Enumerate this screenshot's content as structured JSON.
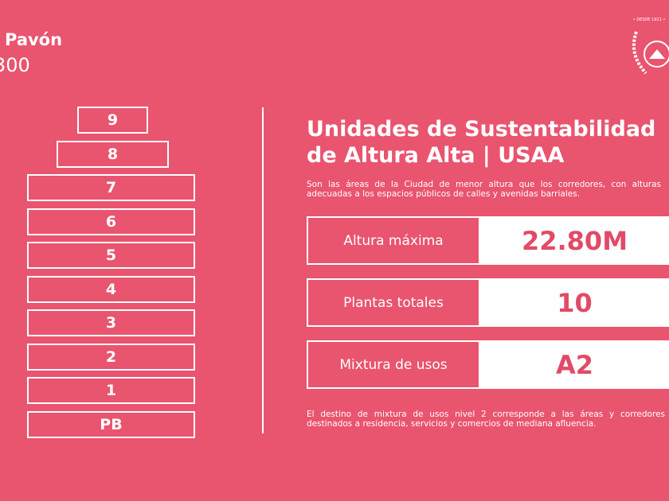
{
  "header": {
    "title": "Pavón",
    "subtitle": "300"
  },
  "logo": {
    "text": "• DESDE 1921 •"
  },
  "floors": [
    "9",
    "8",
    "7",
    "6",
    "5",
    "4",
    "3",
    "2",
    "1",
    "PB"
  ],
  "section": {
    "title_line1": "Unidades de Sustentabilidad",
    "title_line2": "de Altura Alta | USAA",
    "description": "Son las áreas de la Ciudad de menor altura que los corredores, con alturas adecuadas a los espacios públicos de calles y avenidas barriales.",
    "stats": [
      {
        "label": "Altura máxima",
        "value": "22.80M"
      },
      {
        "label": "Plantas totales",
        "value": "10"
      },
      {
        "label": "Mixtura de usos",
        "value": "A2"
      }
    ],
    "footnote": "El destino de mixtura de usos nivel 2 corresponde a las áreas y corredores destinados a residencia, servicios y comercios de mediana afluencia."
  }
}
